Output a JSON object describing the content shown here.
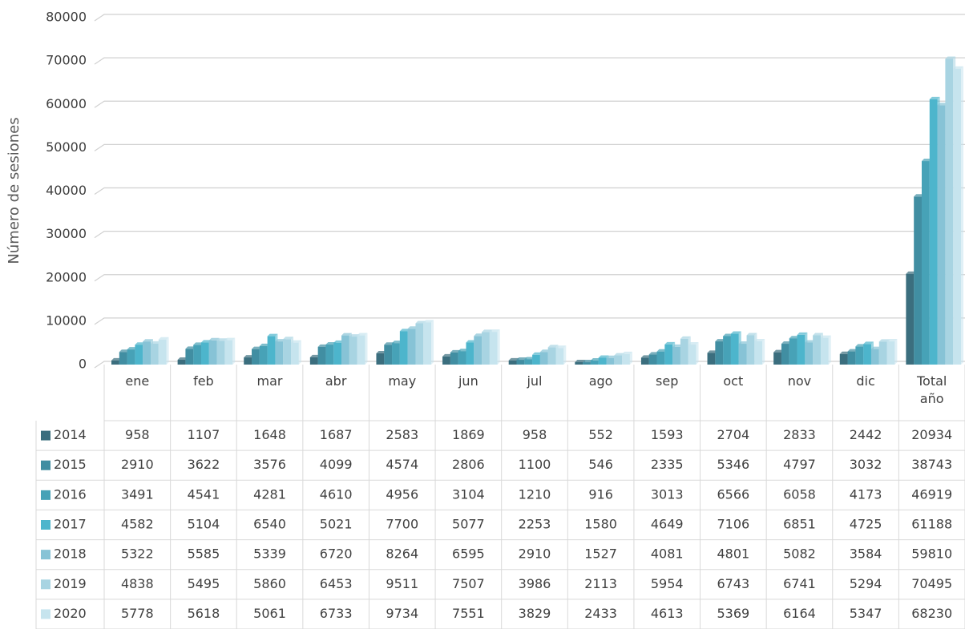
{
  "chart_data": {
    "type": "bar",
    "y_label": "Número de sesiones",
    "categories": [
      "ene",
      "feb",
      "mar",
      "abr",
      "may",
      "jun",
      "jul",
      "ago",
      "sep",
      "oct",
      "nov",
      "dic",
      "Total año"
    ],
    "ylim": [
      0,
      80000
    ],
    "yticks": [
      0,
      10000,
      20000,
      30000,
      40000,
      50000,
      60000,
      70000,
      80000
    ],
    "grid": true,
    "series": [
      {
        "name": "2014",
        "color": "#3b6e7e",
        "values": [
          958,
          1107,
          1648,
          1687,
          2583,
          1869,
          958,
          552,
          1593,
          2704,
          2833,
          2442,
          20934
        ]
      },
      {
        "name": "2015",
        "color": "#418ea2",
        "values": [
          2910,
          3622,
          3576,
          4099,
          4574,
          2806,
          1100,
          546,
          2335,
          5346,
          4797,
          3032,
          38743
        ]
      },
      {
        "name": "2016",
        "color": "#47a2b7",
        "values": [
          3491,
          4541,
          4281,
          4610,
          4956,
          3104,
          1210,
          916,
          3013,
          6566,
          6058,
          4173,
          46919
        ]
      },
      {
        "name": "2017",
        "color": "#4db5cc",
        "values": [
          4582,
          5104,
          6540,
          5021,
          7700,
          5077,
          2253,
          1580,
          4649,
          7106,
          6851,
          4725,
          61188
        ]
      },
      {
        "name": "2018",
        "color": "#87c3d6",
        "values": [
          5322,
          5585,
          5339,
          6720,
          8264,
          6595,
          2910,
          1527,
          4081,
          4801,
          5082,
          3584,
          59810
        ]
      },
      {
        "name": "2019",
        "color": "#a8d4e2",
        "values": [
          4838,
          5495,
          5860,
          6453,
          9511,
          7507,
          3986,
          2113,
          5954,
          6743,
          6741,
          5294,
          70495
        ]
      },
      {
        "name": "2020",
        "color": "#c6e4ee",
        "values": [
          5778,
          5618,
          5061,
          6733,
          9734,
          7551,
          3829,
          2433,
          4613,
          5369,
          6164,
          5347,
          68230
        ]
      }
    ]
  }
}
